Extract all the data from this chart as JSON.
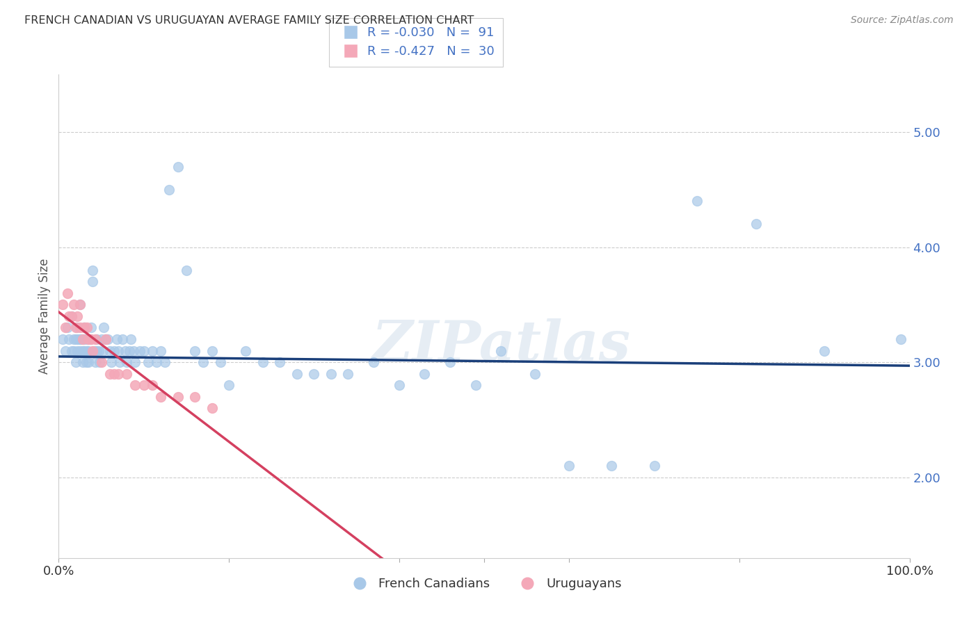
{
  "title": "FRENCH CANADIAN VS URUGUAYAN AVERAGE FAMILY SIZE CORRELATION CHART",
  "source": "Source: ZipAtlas.com",
  "ylabel": "Average Family Size",
  "yticks": [
    2.0,
    3.0,
    4.0,
    5.0
  ],
  "xlim": [
    0.0,
    1.0
  ],
  "ylim": [
    1.3,
    5.5
  ],
  "legend_blue_r": "R = -0.030",
  "legend_blue_n": "N =  91",
  "legend_pink_r": "R = -0.427",
  "legend_pink_n": "N =  30",
  "blue_color": "#a8c8e8",
  "pink_color": "#f4a8b8",
  "blue_line_color": "#1a3f7a",
  "pink_line_color": "#d44060",
  "pink_dash_color": "#e8a0b4",
  "watermark": "ZIPatlas",
  "blue_x": [
    0.005,
    0.008,
    0.01,
    0.012,
    0.015,
    0.015,
    0.018,
    0.018,
    0.02,
    0.02,
    0.022,
    0.022,
    0.023,
    0.025,
    0.025,
    0.025,
    0.027,
    0.028,
    0.028,
    0.03,
    0.03,
    0.03,
    0.032,
    0.033,
    0.033,
    0.035,
    0.035,
    0.037,
    0.038,
    0.04,
    0.04,
    0.042,
    0.043,
    0.045,
    0.045,
    0.047,
    0.048,
    0.05,
    0.052,
    0.053,
    0.055,
    0.058,
    0.06,
    0.062,
    0.065,
    0.068,
    0.07,
    0.072,
    0.075,
    0.078,
    0.08,
    0.083,
    0.085,
    0.088,
    0.09,
    0.095,
    0.1,
    0.105,
    0.11,
    0.115,
    0.12,
    0.125,
    0.13,
    0.14,
    0.15,
    0.16,
    0.17,
    0.18,
    0.19,
    0.2,
    0.22,
    0.24,
    0.26,
    0.28,
    0.3,
    0.32,
    0.34,
    0.37,
    0.4,
    0.43,
    0.46,
    0.49,
    0.52,
    0.56,
    0.6,
    0.65,
    0.7,
    0.75,
    0.82,
    0.9,
    0.99
  ],
  "blue_y": [
    3.2,
    3.1,
    3.3,
    3.2,
    3.1,
    3.4,
    3.2,
    3.1,
    3.0,
    3.2,
    3.3,
    3.1,
    3.2,
    3.5,
    3.2,
    3.1,
    3.2,
    3.1,
    3.0,
    3.3,
    3.2,
    3.1,
    3.0,
    3.2,
    3.1,
    3.1,
    3.0,
    3.2,
    3.3,
    3.8,
    3.7,
    3.1,
    3.0,
    3.2,
    3.1,
    3.1,
    3.0,
    3.2,
    3.1,
    3.3,
    3.2,
    3.2,
    3.1,
    3.0,
    3.1,
    3.2,
    3.1,
    3.0,
    3.2,
    3.1,
    3.0,
    3.1,
    3.2,
    3.1,
    3.0,
    3.1,
    3.1,
    3.0,
    3.1,
    3.0,
    3.1,
    3.0,
    4.5,
    4.7,
    3.8,
    3.1,
    3.0,
    3.1,
    3.0,
    2.8,
    3.1,
    3.0,
    3.0,
    2.9,
    2.9,
    2.9,
    2.9,
    3.0,
    2.8,
    2.9,
    3.0,
    2.8,
    3.1,
    2.9,
    2.1,
    2.1,
    2.1,
    4.4,
    4.2,
    3.1,
    3.2
  ],
  "pink_x": [
    0.005,
    0.008,
    0.01,
    0.012,
    0.015,
    0.018,
    0.02,
    0.022,
    0.025,
    0.025,
    0.028,
    0.03,
    0.033,
    0.035,
    0.038,
    0.04,
    0.043,
    0.05,
    0.055,
    0.06,
    0.065,
    0.07,
    0.08,
    0.09,
    0.1,
    0.11,
    0.12,
    0.14,
    0.16,
    0.18
  ],
  "pink_y": [
    3.5,
    3.3,
    3.6,
    3.4,
    3.4,
    3.5,
    3.3,
    3.4,
    3.3,
    3.5,
    3.2,
    3.3,
    3.3,
    3.2,
    3.2,
    3.1,
    3.2,
    3.0,
    3.2,
    2.9,
    2.9,
    2.9,
    2.9,
    2.8,
    2.8,
    2.8,
    2.7,
    2.7,
    2.7,
    2.6
  ]
}
